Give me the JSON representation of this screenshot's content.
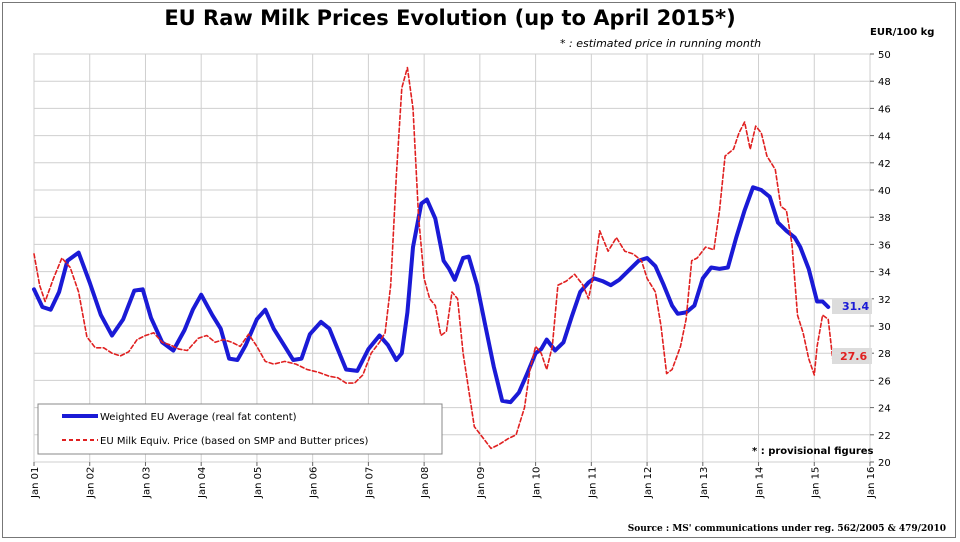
{
  "title": "EU Raw Milk Prices Evolution (up to  April 2015*)",
  "subtitle": "* : estimated price in running month",
  "unit_label": "EUR/100 kg",
  "provisional_note": "* : provisional figures",
  "source": "Source : MS' communications under reg. 562/2005 & 479/2010",
  "colors": {
    "weighted": "#1a1ad6",
    "equiv": "#e02020",
    "grid": "#cfcfcf"
  },
  "chart_data": {
    "type": "line",
    "ylim": [
      20,
      50
    ],
    "y_ticks": [
      "20",
      "22",
      "24",
      "26",
      "28",
      "30",
      "32",
      "34",
      "36",
      "38",
      "40",
      "42",
      "44",
      "46",
      "48",
      "50"
    ],
    "x_range": [
      2001,
      2016
    ],
    "x_ticks": [
      "Jan 01",
      "Jan 02",
      "Jan 03",
      "Jan 04",
      "Jan 05",
      "Jan 06",
      "Jan 07",
      "Jan 08",
      "Jan 09",
      "Jan 10",
      "Jan 11",
      "Jan 12",
      "Jan 13",
      "Jan 14",
      "Jan 15",
      "Jan 16"
    ],
    "grid": true,
    "legend_position": "bottom-left",
    "series": [
      {
        "name": "Weighted EU Average (real fat content)",
        "style": "solid",
        "end_label": "31.4",
        "points": [
          [
            2001.0,
            32.7
          ],
          [
            2001.15,
            31.4
          ],
          [
            2001.3,
            31.2
          ],
          [
            2001.45,
            32.5
          ],
          [
            2001.6,
            34.8
          ],
          [
            2001.8,
            35.4
          ],
          [
            2002.0,
            33.2
          ],
          [
            2002.2,
            30.8
          ],
          [
            2002.4,
            29.3
          ],
          [
            2002.6,
            30.5
          ],
          [
            2002.8,
            32.6
          ],
          [
            2002.95,
            32.7
          ],
          [
            2003.1,
            30.6
          ],
          [
            2003.3,
            28.8
          ],
          [
            2003.5,
            28.2
          ],
          [
            2003.7,
            29.7
          ],
          [
            2003.85,
            31.2
          ],
          [
            2004.0,
            32.3
          ],
          [
            2004.2,
            30.8
          ],
          [
            2004.35,
            29.8
          ],
          [
            2004.5,
            27.6
          ],
          [
            2004.65,
            27.5
          ],
          [
            2004.8,
            28.6
          ],
          [
            2005.0,
            30.5
          ],
          [
            2005.15,
            31.2
          ],
          [
            2005.3,
            29.8
          ],
          [
            2005.5,
            28.5
          ],
          [
            2005.65,
            27.5
          ],
          [
            2005.8,
            27.6
          ],
          [
            2005.95,
            29.4
          ],
          [
            2006.15,
            30.3
          ],
          [
            2006.3,
            29.8
          ],
          [
            2006.45,
            28.3
          ],
          [
            2006.6,
            26.8
          ],
          [
            2006.8,
            26.7
          ],
          [
            2007.0,
            28.3
          ],
          [
            2007.2,
            29.3
          ],
          [
            2007.35,
            28.6
          ],
          [
            2007.5,
            27.5
          ],
          [
            2007.6,
            28.0
          ],
          [
            2007.7,
            31.0
          ],
          [
            2007.8,
            35.8
          ],
          [
            2007.95,
            39.0
          ],
          [
            2008.05,
            39.3
          ],
          [
            2008.2,
            37.9
          ],
          [
            2008.35,
            34.8
          ],
          [
            2008.45,
            34.2
          ],
          [
            2008.55,
            33.4
          ],
          [
            2008.7,
            35.0
          ],
          [
            2008.8,
            35.1
          ],
          [
            2008.95,
            33.0
          ],
          [
            2009.1,
            30.0
          ],
          [
            2009.25,
            27.0
          ],
          [
            2009.4,
            24.5
          ],
          [
            2009.55,
            24.4
          ],
          [
            2009.7,
            25.1
          ],
          [
            2009.85,
            26.5
          ],
          [
            2010.0,
            28.0
          ],
          [
            2010.1,
            28.3
          ],
          [
            2010.2,
            29.0
          ],
          [
            2010.35,
            28.2
          ],
          [
            2010.5,
            28.8
          ],
          [
            2010.65,
            30.7
          ],
          [
            2010.8,
            32.5
          ],
          [
            2010.95,
            33.2
          ],
          [
            2011.05,
            33.5
          ],
          [
            2011.2,
            33.3
          ],
          [
            2011.35,
            33.0
          ],
          [
            2011.5,
            33.4
          ],
          [
            2011.65,
            34.0
          ],
          [
            2011.85,
            34.8
          ],
          [
            2012.0,
            35.0
          ],
          [
            2012.15,
            34.4
          ],
          [
            2012.3,
            33.0
          ],
          [
            2012.45,
            31.5
          ],
          [
            2012.55,
            30.9
          ],
          [
            2012.7,
            31.0
          ],
          [
            2012.85,
            31.5
          ],
          [
            2013.0,
            33.5
          ],
          [
            2013.15,
            34.3
          ],
          [
            2013.3,
            34.2
          ],
          [
            2013.45,
            34.3
          ],
          [
            2013.6,
            36.5
          ],
          [
            2013.75,
            38.5
          ],
          [
            2013.9,
            40.2
          ],
          [
            2014.05,
            40.0
          ],
          [
            2014.2,
            39.5
          ],
          [
            2014.35,
            37.6
          ],
          [
            2014.5,
            37.0
          ],
          [
            2014.65,
            36.5
          ],
          [
            2014.75,
            35.8
          ],
          [
            2014.9,
            34.2
          ],
          [
            2015.05,
            31.8
          ],
          [
            2015.15,
            31.8
          ],
          [
            2015.25,
            31.4
          ]
        ]
      },
      {
        "name": "EU Milk Equiv. Price (based on SMP and Butter prices)",
        "style": "dashed",
        "end_label": "27.6",
        "points": [
          [
            2001.0,
            35.3
          ],
          [
            2001.1,
            33.0
          ],
          [
            2001.2,
            31.8
          ],
          [
            2001.35,
            33.5
          ],
          [
            2001.5,
            35.0
          ],
          [
            2001.65,
            34.3
          ],
          [
            2001.8,
            32.5
          ],
          [
            2001.95,
            29.2
          ],
          [
            2002.1,
            28.4
          ],
          [
            2002.25,
            28.4
          ],
          [
            2002.4,
            28.0
          ],
          [
            2002.55,
            27.8
          ],
          [
            2002.7,
            28.1
          ],
          [
            2002.85,
            29.0
          ],
          [
            2003.0,
            29.3
          ],
          [
            2003.15,
            29.5
          ],
          [
            2003.3,
            28.8
          ],
          [
            2003.45,
            28.6
          ],
          [
            2003.6,
            28.3
          ],
          [
            2003.75,
            28.2
          ],
          [
            2003.95,
            29.1
          ],
          [
            2004.1,
            29.3
          ],
          [
            2004.25,
            28.8
          ],
          [
            2004.4,
            29.0
          ],
          [
            2004.55,
            28.8
          ],
          [
            2004.7,
            28.5
          ],
          [
            2004.85,
            29.4
          ],
          [
            2005.0,
            28.5
          ],
          [
            2005.15,
            27.4
          ],
          [
            2005.3,
            27.2
          ],
          [
            2005.5,
            27.4
          ],
          [
            2005.7,
            27.2
          ],
          [
            2005.9,
            26.8
          ],
          [
            2006.1,
            26.6
          ],
          [
            2006.3,
            26.3
          ],
          [
            2006.45,
            26.2
          ],
          [
            2006.6,
            25.8
          ],
          [
            2006.75,
            25.8
          ],
          [
            2006.9,
            26.4
          ],
          [
            2007.05,
            28.0
          ],
          [
            2007.2,
            28.8
          ],
          [
            2007.3,
            29.5
          ],
          [
            2007.4,
            33.0
          ],
          [
            2007.5,
            41.0
          ],
          [
            2007.6,
            47.5
          ],
          [
            2007.7,
            49.0
          ],
          [
            2007.8,
            46.0
          ],
          [
            2007.9,
            38.0
          ],
          [
            2008.0,
            33.5
          ],
          [
            2008.1,
            32.0
          ],
          [
            2008.2,
            31.5
          ],
          [
            2008.3,
            29.3
          ],
          [
            2008.4,
            29.6
          ],
          [
            2008.5,
            32.5
          ],
          [
            2008.6,
            32.0
          ],
          [
            2008.7,
            28.0
          ],
          [
            2008.8,
            25.3
          ],
          [
            2008.9,
            22.6
          ],
          [
            2009.05,
            21.8
          ],
          [
            2009.2,
            21.0
          ],
          [
            2009.35,
            21.3
          ],
          [
            2009.5,
            21.7
          ],
          [
            2009.65,
            22.0
          ],
          [
            2009.8,
            24.0
          ],
          [
            2009.9,
            26.8
          ],
          [
            2010.0,
            28.5
          ],
          [
            2010.1,
            28.0
          ],
          [
            2010.2,
            26.8
          ],
          [
            2010.3,
            28.5
          ],
          [
            2010.4,
            33.0
          ],
          [
            2010.55,
            33.3
          ],
          [
            2010.7,
            33.8
          ],
          [
            2010.85,
            33.0
          ],
          [
            2010.95,
            32.0
          ],
          [
            2011.05,
            34.0
          ],
          [
            2011.15,
            37.0
          ],
          [
            2011.3,
            35.5
          ],
          [
            2011.45,
            36.5
          ],
          [
            2011.6,
            35.5
          ],
          [
            2011.75,
            35.3
          ],
          [
            2011.9,
            34.8
          ],
          [
            2012.0,
            33.5
          ],
          [
            2012.15,
            32.5
          ],
          [
            2012.25,
            30.0
          ],
          [
            2012.35,
            26.5
          ],
          [
            2012.45,
            26.8
          ],
          [
            2012.6,
            28.5
          ],
          [
            2012.7,
            30.5
          ],
          [
            2012.8,
            34.8
          ],
          [
            2012.9,
            35.0
          ],
          [
            2013.05,
            35.8
          ],
          [
            2013.2,
            35.6
          ],
          [
            2013.3,
            38.5
          ],
          [
            2013.4,
            42.5
          ],
          [
            2013.55,
            43.0
          ],
          [
            2013.65,
            44.2
          ],
          [
            2013.75,
            45.0
          ],
          [
            2013.85,
            43.0
          ],
          [
            2013.95,
            44.7
          ],
          [
            2014.05,
            44.2
          ],
          [
            2014.15,
            42.5
          ],
          [
            2014.3,
            41.5
          ],
          [
            2014.4,
            38.8
          ],
          [
            2014.5,
            38.5
          ],
          [
            2014.6,
            36.0
          ],
          [
            2014.7,
            30.8
          ],
          [
            2014.8,
            29.5
          ],
          [
            2014.9,
            27.6
          ],
          [
            2015.0,
            26.4
          ],
          [
            2015.05,
            28.5
          ],
          [
            2015.15,
            30.8
          ],
          [
            2015.25,
            30.5
          ],
          [
            2015.33,
            27.6
          ]
        ]
      }
    ]
  }
}
